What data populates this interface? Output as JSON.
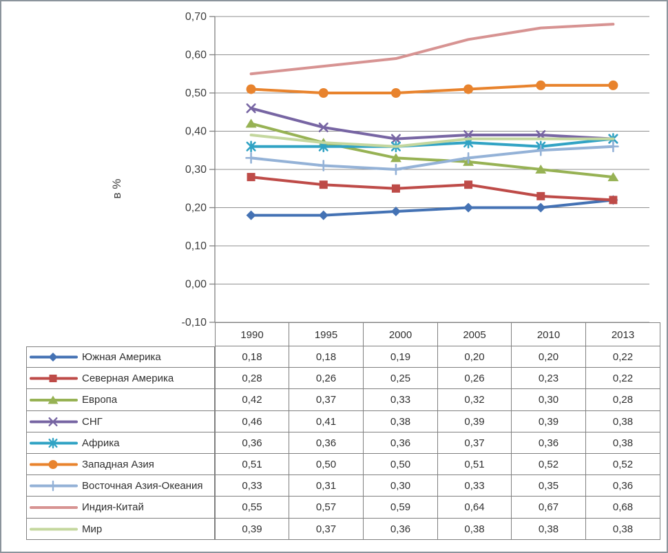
{
  "frame": {
    "border_color": "#8b949c",
    "background": "#ffffff"
  },
  "chart_data": {
    "type": "line",
    "title": "",
    "xlabel": "",
    "ylabel": "в %",
    "categories": [
      "1990",
      "1995",
      "2000",
      "2005",
      "2010",
      "2013"
    ],
    "y_axis": {
      "min": -0.1,
      "max": 0.7,
      "step": 0.1,
      "tick_labels": [
        "0,70",
        "0,60",
        "0,50",
        "0,40",
        "0,30",
        "0,20",
        "0,10",
        "0,00",
        "-0,10"
      ],
      "decimal_separator": ","
    },
    "grid": true,
    "legend_position": "table-left",
    "series": [
      {
        "name": "Южная Америка",
        "color": "#4472B4",
        "marker": "diamond",
        "values": [
          0.18,
          0.18,
          0.19,
          0.2,
          0.2,
          0.22
        ]
      },
      {
        "name": "Северная Америка",
        "color": "#BE4B48",
        "marker": "square",
        "values": [
          0.28,
          0.26,
          0.25,
          0.26,
          0.23,
          0.22
        ]
      },
      {
        "name": "Европа",
        "color": "#97B254",
        "marker": "triangle",
        "values": [
          0.42,
          0.37,
          0.33,
          0.32,
          0.3,
          0.28
        ]
      },
      {
        "name": "СНГ",
        "color": "#7765A3",
        "marker": "x",
        "values": [
          0.46,
          0.41,
          0.38,
          0.39,
          0.39,
          0.38
        ]
      },
      {
        "name": "Африка",
        "color": "#31A3C4",
        "marker": "asterisk",
        "values": [
          0.36,
          0.36,
          0.36,
          0.37,
          0.36,
          0.38
        ]
      },
      {
        "name": "Западная Азия",
        "color": "#E8832D",
        "marker": "circle",
        "values": [
          0.51,
          0.5,
          0.5,
          0.51,
          0.52,
          0.52
        ]
      },
      {
        "name": "Восточная Азия-Океания",
        "color": "#94B2D7",
        "marker": "plus",
        "values": [
          0.33,
          0.31,
          0.3,
          0.33,
          0.35,
          0.36
        ]
      },
      {
        "name": "Индия-Китай",
        "color": "#D79392",
        "marker": "none",
        "values": [
          0.55,
          0.57,
          0.59,
          0.64,
          0.67,
          0.68
        ]
      },
      {
        "name": "Мир",
        "color": "#C4D79E",
        "marker": "none",
        "values": [
          0.39,
          0.37,
          0.36,
          0.38,
          0.38,
          0.38
        ]
      }
    ]
  }
}
